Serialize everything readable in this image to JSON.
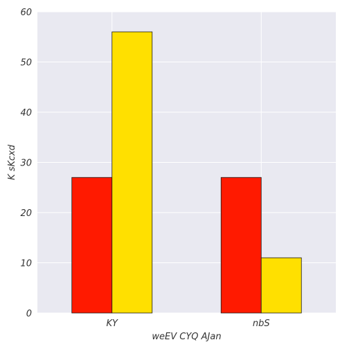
{
  "chart_data": {
    "type": "bar",
    "categories": [
      "KY",
      "nbS"
    ],
    "series": [
      {
        "values": [
          27,
          27
        ]
      },
      {
        "values": [
          56,
          11
        ]
      }
    ],
    "title": "",
    "xlabel": "weEV CYQ AJan",
    "ylabel": "K sKcxd",
    "ylim": [
      0,
      60
    ],
    "yticks": [
      0,
      10,
      20,
      30,
      40,
      50,
      60
    ],
    "grid": true,
    "legend": "none"
  },
  "colors": {
    "plot_background": "#e9e9f1",
    "grid": "#ffffff",
    "series": [
      "#ff1a00",
      "#ffe000"
    ],
    "bar_edge": "#1a1a1a"
  }
}
